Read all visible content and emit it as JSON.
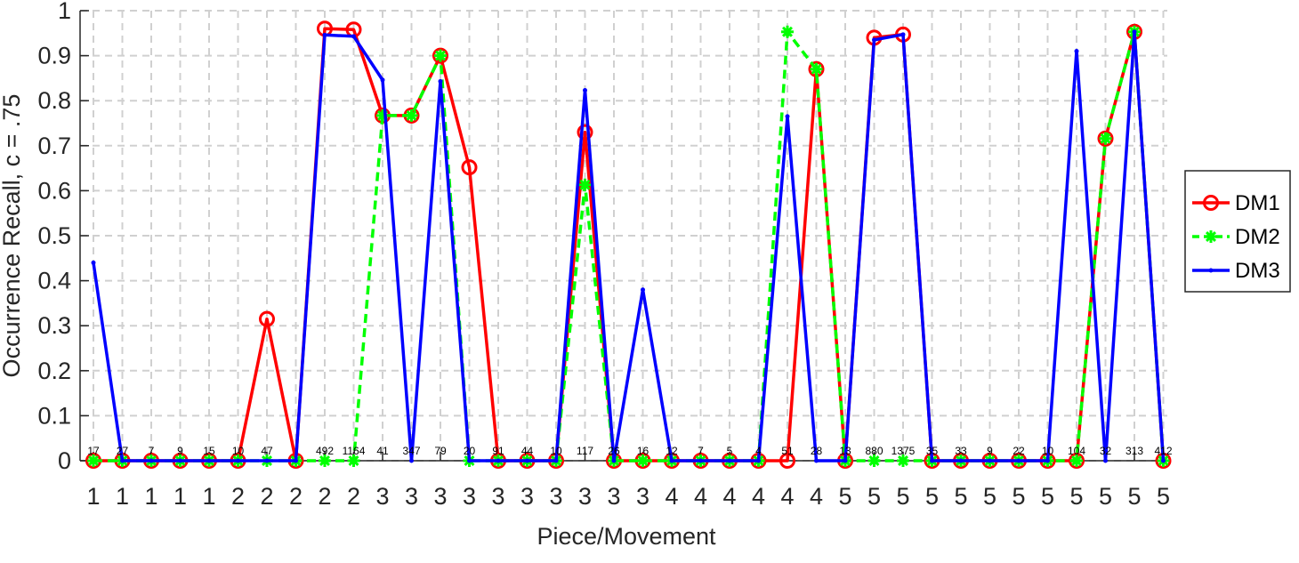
{
  "chart_data": {
    "type": "line",
    "title": "",
    "xlabel": "Piece/Movement",
    "ylabel": "Occurrence Recall, c = .75",
    "ylim": [
      0,
      1
    ],
    "yticks": [
      "0",
      "0.1",
      "0.2",
      "0.3",
      "0.4",
      "0.5",
      "0.6",
      "0.7",
      "0.8",
      "0.9",
      "1"
    ],
    "grid": true,
    "legend_position": "right",
    "categories": [
      "1",
      "1",
      "1",
      "1",
      "1",
      "2",
      "2",
      "2",
      "2",
      "2",
      "3",
      "3",
      "3",
      "3",
      "3",
      "3",
      "3",
      "3",
      "3",
      "3",
      "4",
      "4",
      "4",
      "4",
      "4",
      "4",
      "5",
      "5",
      "5",
      "5",
      "5",
      "5",
      "5",
      "5",
      "5",
      "5",
      "5",
      "5"
    ],
    "counts": [
      "17",
      "27",
      "7",
      "9",
      "15",
      "10",
      "47",
      "",
      "492",
      "1164",
      "41",
      "347",
      "79",
      "20",
      "91",
      "44",
      "10",
      "117",
      "26",
      "16",
      "12",
      "7",
      "5",
      "4",
      "51",
      "28",
      "13",
      "880",
      "1375",
      "35",
      "33",
      "9",
      "22",
      "10",
      "104",
      "32",
      "313",
      "412"
    ],
    "series": [
      {
        "name": "DM1",
        "color": "#ff0000",
        "values": [
          0,
          0,
          0,
          0,
          0,
          0,
          0.315,
          0,
          0.96,
          0.958,
          0.767,
          0.767,
          0.9,
          0.652,
          0,
          0,
          0,
          0.73,
          0,
          0,
          0,
          0,
          0,
          0,
          0,
          0.87,
          0,
          0.94,
          0.947,
          0,
          0,
          0,
          0,
          0,
          0,
          0.716,
          0.953,
          0
        ]
      },
      {
        "name": "DM2",
        "color": "#00ff00",
        "values": [
          0,
          0,
          0,
          0,
          0,
          0,
          0,
          0,
          0,
          0,
          0.767,
          0.767,
          0.9,
          0,
          0,
          0,
          0,
          0.613,
          0,
          0,
          0,
          0,
          0,
          0,
          0.953,
          0.87,
          0,
          0,
          0,
          0,
          0,
          0,
          0,
          0,
          0,
          0.716,
          0.953,
          0
        ]
      },
      {
        "name": "DM3",
        "color": "#0000ff",
        "values": [
          0.44,
          0,
          0,
          0,
          0,
          0,
          0,
          0,
          0.946,
          0.943,
          0.846,
          0,
          0.843,
          0,
          0,
          0,
          0,
          0.823,
          0,
          0.38,
          0,
          0,
          0,
          0,
          0.765,
          0,
          0,
          0.935,
          0.947,
          0,
          0,
          0,
          0,
          0,
          0.91,
          0,
          0.953,
          0
        ]
      }
    ]
  }
}
